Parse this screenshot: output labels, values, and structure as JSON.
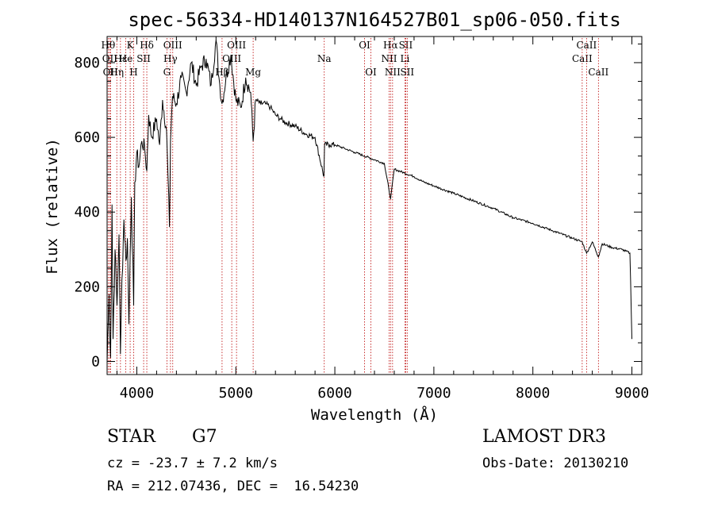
{
  "chart_data": {
    "type": "line",
    "title": "spec-56334-HD140137N164527B01_sp06-050.fits",
    "xlabel": "Wavelength (Å)",
    "ylabel": "Flux (relative)",
    "xlim": [
      3700,
      9100
    ],
    "ylim": [
      -35,
      870
    ],
    "xticks": [
      4000,
      5000,
      6000,
      7000,
      8000,
      9000
    ],
    "yticks": [
      0,
      200,
      400,
      600,
      800
    ],
    "series": [
      {
        "name": "spectrum",
        "x": [
          3700,
          3720,
          3735,
          3750,
          3760,
          3780,
          3800,
          3820,
          3835,
          3850,
          3870,
          3890,
          3905,
          3920,
          3933,
          3945,
          3968,
          3980,
          4000,
          4020,
          4050,
          4080,
          4101,
          4120,
          4150,
          4200,
          4230,
          4260,
          4300,
          4330,
          4340,
          4360,
          4400,
          4450,
          4500,
          4550,
          4600,
          4650,
          4700,
          4750,
          4800,
          4830,
          4861,
          4900,
          4950,
          5000,
          5050,
          5100,
          5150,
          5175,
          5200,
          5250,
          5300,
          5350,
          5400,
          5450,
          5500,
          5600,
          5700,
          5800,
          5890,
          5896,
          5950,
          6000,
          6100,
          6200,
          6300,
          6400,
          6500,
          6563,
          6600,
          6700,
          6800,
          6900,
          7000,
          7200,
          7400,
          7600,
          7800,
          8000,
          8200,
          8400,
          8498,
          8542,
          8600,
          8662,
          8700,
          8800,
          8900,
          8980,
          9000
        ],
        "values": [
          0,
          180,
          10,
          420,
          60,
          300,
          150,
          340,
          20,
          220,
          380,
          270,
          330,
          100,
          290,
          440,
          150,
          480,
          560,
          520,
          590,
          570,
          510,
          660,
          600,
          650,
          580,
          700,
          620,
          360,
          590,
          710,
          690,
          760,
          720,
          800,
          740,
          790,
          810,
          740,
          860,
          760,
          690,
          760,
          820,
          700,
          680,
          760,
          720,
          590,
          700,
          690,
          690,
          680,
          660,
          650,
          640,
          630,
          610,
          600,
          495,
          580,
          580,
          580,
          570,
          560,
          550,
          540,
          530,
          435,
          515,
          505,
          495,
          480,
          470,
          450,
          430,
          410,
          385,
          370,
          350,
          330,
          320,
          290,
          320,
          280,
          315,
          305,
          300,
          290,
          60
        ]
      }
    ],
    "lines": [
      {
        "w": 3711,
        "label": "Hθ",
        "row": 0
      },
      {
        "w": 3727,
        "label": "OII",
        "row": 1
      },
      {
        "w": 3734,
        "label": "OII",
        "row": 2
      },
      {
        "w": 3798,
        "label": "Hη",
        "row": 2
      },
      {
        "w": 3835,
        "label": "Hε",
        "row": 1
      },
      {
        "w": 3889,
        "label": "He",
        "row": 1
      },
      {
        "w": 3933,
        "label": "K",
        "row": 0
      },
      {
        "w": 3968,
        "label": "H",
        "row": 2
      },
      {
        "w": 4069,
        "label": "SII",
        "row": 1
      },
      {
        "w": 4101,
        "label": "Hδ",
        "row": 0
      },
      {
        "w": 4304,
        "label": "G",
        "row": 2
      },
      {
        "w": 4340,
        "label": "Hγ",
        "row": 1
      },
      {
        "w": 4363,
        "label": "OIII",
        "row": 0
      },
      {
        "w": 4861,
        "label": "Hβ",
        "row": 2
      },
      {
        "w": 4959,
        "label": "OIII",
        "row": 1
      },
      {
        "w": 5007,
        "label": "OIII",
        "row": 0
      },
      {
        "w": 5175,
        "label": "Mg",
        "row": 2
      },
      {
        "w": 5893,
        "label": "Na",
        "row": 1
      },
      {
        "w": 6300,
        "label": "OI",
        "row": 0
      },
      {
        "w": 6364,
        "label": "OI",
        "row": 2
      },
      {
        "w": 6548,
        "label": "NII",
        "row": 1
      },
      {
        "w": 6563,
        "label": "Hα",
        "row": 0
      },
      {
        "w": 6583,
        "label": "NII",
        "row": 2
      },
      {
        "w": 6708,
        "label": "Li",
        "row": 1
      },
      {
        "w": 6716,
        "label": "SII",
        "row": 0
      },
      {
        "w": 6731,
        "label": "SII",
        "row": 2
      },
      {
        "w": 8498,
        "label": "CaII",
        "row": 1
      },
      {
        "w": 8542,
        "label": "CaII",
        "row": 0
      },
      {
        "w": 8662,
        "label": "CaII",
        "row": 2
      }
    ],
    "line_color": "#bb0000"
  },
  "info": {
    "object_class": "STAR",
    "subclass": "G7",
    "survey": "LAMOST DR3",
    "redshift": "cz = -23.7 ± 7.2 km/s",
    "obs_date": "Obs-Date: 20130210",
    "coords": "RA = 212.07436, DEC =  16.54230"
  }
}
